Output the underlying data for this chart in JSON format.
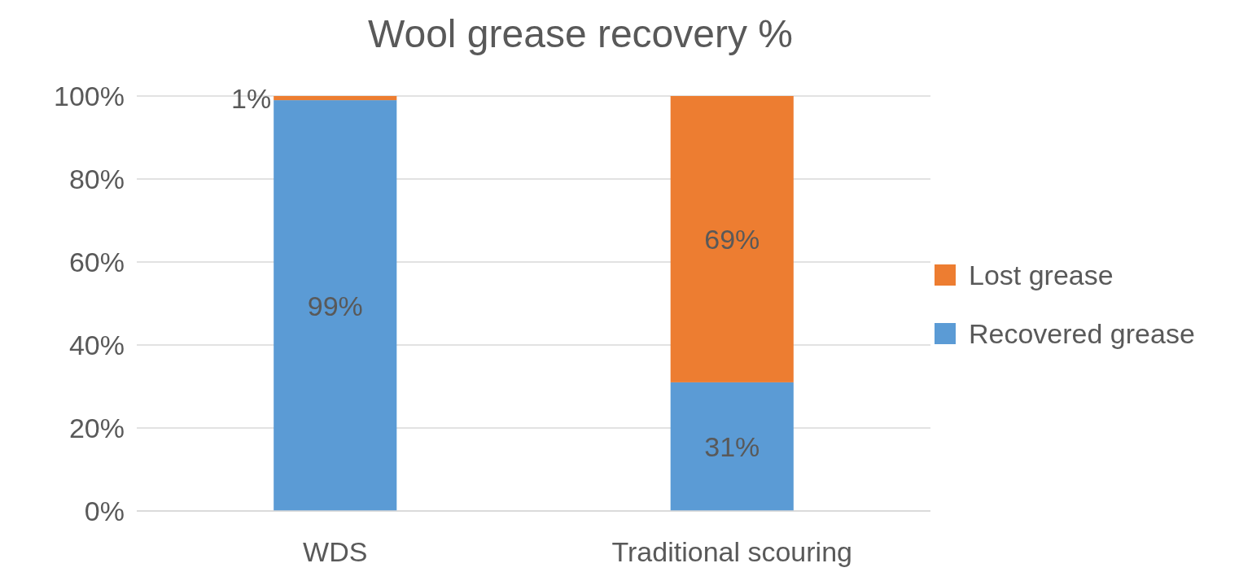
{
  "chart_data": {
    "type": "bar",
    "title": "Wool grease recovery %",
    "categories": [
      "WDS",
      "Traditional scouring"
    ],
    "stacked": true,
    "ylim": [
      0,
      100
    ],
    "yticks": [
      {
        "value": 0,
        "label": "0%"
      },
      {
        "value": 20,
        "label": "20%"
      },
      {
        "value": 40,
        "label": "40%"
      },
      {
        "value": 60,
        "label": "60%"
      },
      {
        "value": 80,
        "label": "80%"
      },
      {
        "value": 100,
        "label": "100%"
      }
    ],
    "grid": "y",
    "legend": "right",
    "series": [
      {
        "name": "Recovered grease",
        "color": "#5b9bd5",
        "values": [
          99,
          31
        ],
        "value_labels": [
          "99%",
          "31%"
        ]
      },
      {
        "name": "Lost grease",
        "color": "#ed7d31",
        "values": [
          1,
          69
        ],
        "value_labels": [
          "1%",
          "69%"
        ]
      }
    ]
  }
}
